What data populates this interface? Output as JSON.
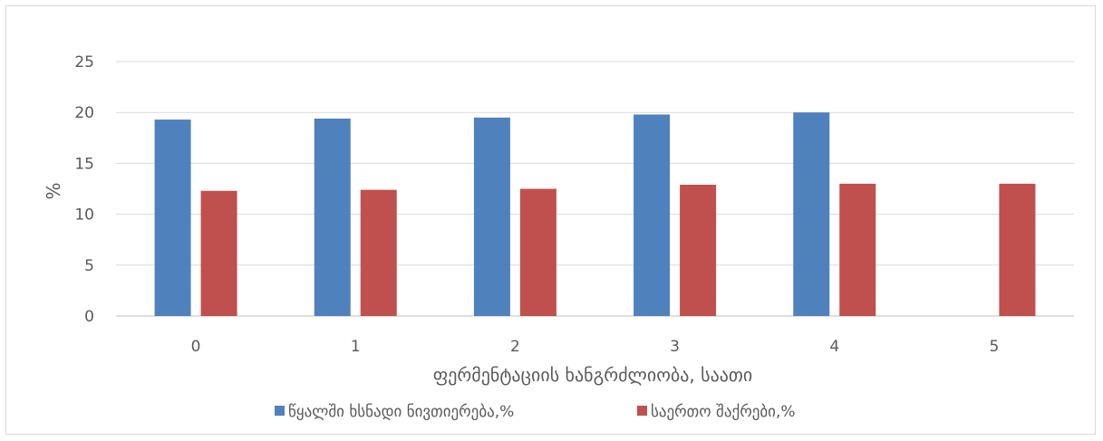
{
  "chart_data": {
    "type": "bar",
    "title": "",
    "xlabel": "ფერმენტაციის ხანგრძლიობა, საათი",
    "ylabel": "%",
    "ylim": [
      0,
      25
    ],
    "yticks": [
      0,
      5,
      10,
      15,
      20,
      25
    ],
    "categories": [
      "0",
      "1",
      "2",
      "3",
      "4",
      "5"
    ],
    "series": [
      {
        "name": "წყალში ხსნადი  ნივთიერება,%",
        "color": "#4f81bd",
        "values": [
          19.3,
          19.4,
          19.5,
          19.8,
          20.0,
          null
        ]
      },
      {
        "name": "საერთო შაქრები,%",
        "color": "#c0504d",
        "values": [
          12.3,
          12.4,
          12.5,
          12.9,
          13.0,
          13.0
        ]
      }
    ],
    "grid": true,
    "legend": "bottom"
  }
}
